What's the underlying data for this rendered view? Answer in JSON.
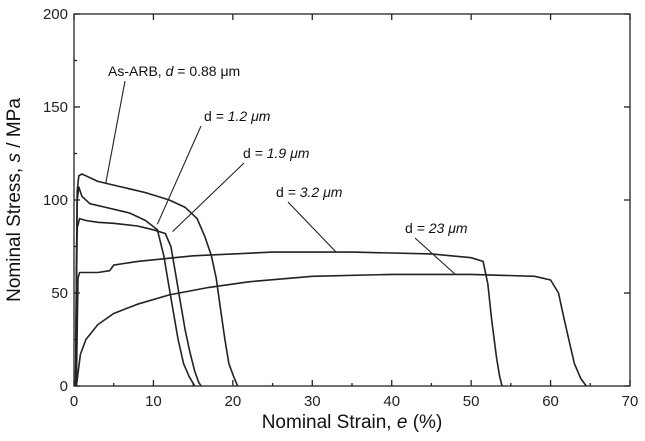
{
  "chart_data": {
    "type": "line",
    "title": "",
    "xlabel_parts": [
      "Nominal Strain, ",
      "e",
      " (%)"
    ],
    "ylabel_parts": [
      "Nominal Stress, ",
      "s",
      " / MPa"
    ],
    "xlim": [
      0,
      70
    ],
    "ylim": [
      0,
      200
    ],
    "xticks": [
      0,
      10,
      20,
      30,
      40,
      50,
      60,
      70
    ],
    "yticks": [
      0,
      50,
      100,
      150,
      200
    ],
    "grid": false,
    "legend": "none",
    "series": [
      {
        "label_parts": [
          "As-ARB, ",
          "d",
          " = 0.88 μm"
        ],
        "points": [
          [
            0.2,
            0
          ],
          [
            0.3,
            60
          ],
          [
            0.4,
            105
          ],
          [
            0.6,
            113
          ],
          [
            1.0,
            114
          ],
          [
            1.5,
            113
          ],
          [
            3,
            110
          ],
          [
            6,
            107
          ],
          [
            9,
            104
          ],
          [
            12,
            100
          ],
          [
            14,
            96
          ],
          [
            15.5,
            90
          ],
          [
            16.5,
            80
          ],
          [
            17.3,
            70
          ],
          [
            17.9,
            58
          ],
          [
            18.5,
            40
          ],
          [
            19,
            25
          ],
          [
            19.5,
            12
          ],
          [
            20.1,
            5
          ],
          [
            20.6,
            0
          ]
        ]
      },
      {
        "label_parts": [
          "d",
          " = 1.2 μm"
        ],
        "points": [
          [
            0.2,
            0
          ],
          [
            0.3,
            60
          ],
          [
            0.4,
            100
          ],
          [
            0.6,
            107
          ],
          [
            1.0,
            102
          ],
          [
            2,
            98
          ],
          [
            4,
            96
          ],
          [
            7,
            93
          ],
          [
            9,
            89
          ],
          [
            10.5,
            84
          ],
          [
            11.3,
            70
          ],
          [
            11.9,
            55
          ],
          [
            12.5,
            40
          ],
          [
            13.1,
            25
          ],
          [
            13.8,
            12
          ],
          [
            14.5,
            5
          ],
          [
            15.2,
            0
          ]
        ]
      },
      {
        "label_parts": [
          "d",
          " = 1.9 μm"
        ],
        "points": [
          [
            0.2,
            0
          ],
          [
            0.3,
            50
          ],
          [
            0.4,
            85
          ],
          [
            0.7,
            90
          ],
          [
            1.5,
            89
          ],
          [
            3,
            88
          ],
          [
            5,
            87.5
          ],
          [
            8,
            86
          ],
          [
            10,
            84
          ],
          [
            11.5,
            82
          ],
          [
            12.2,
            75
          ],
          [
            12.8,
            60
          ],
          [
            13.4,
            45
          ],
          [
            14,
            30
          ],
          [
            14.6,
            18
          ],
          [
            15.2,
            8
          ],
          [
            15.7,
            2
          ],
          [
            16,
            0
          ]
        ]
      },
      {
        "label_parts": [
          "d",
          " = 3.2 μm"
        ],
        "points": [
          [
            0.3,
            0
          ],
          [
            0.4,
            30
          ],
          [
            0.5,
            58
          ],
          [
            0.7,
            61
          ],
          [
            1.5,
            61
          ],
          [
            3,
            61
          ],
          [
            4.5,
            62
          ],
          [
            5,
            65
          ],
          [
            8,
            67
          ],
          [
            15,
            70
          ],
          [
            25,
            72
          ],
          [
            35,
            72
          ],
          [
            45,
            71
          ],
          [
            50,
            69
          ],
          [
            51.5,
            67
          ],
          [
            52.1,
            55
          ],
          [
            52.6,
            35
          ],
          [
            53.2,
            15
          ],
          [
            53.6,
            5
          ],
          [
            53.9,
            0
          ]
        ]
      },
      {
        "label_parts": [
          "d",
          " = 23 μm"
        ],
        "points": [
          [
            0.3,
            0
          ],
          [
            0.8,
            17
          ],
          [
            1.5,
            25
          ],
          [
            3,
            33
          ],
          [
            5,
            39
          ],
          [
            8,
            44
          ],
          [
            12,
            49
          ],
          [
            17,
            53
          ],
          [
            22,
            56
          ],
          [
            30,
            59
          ],
          [
            40,
            60
          ],
          [
            50,
            60
          ],
          [
            58,
            59
          ],
          [
            60,
            57
          ],
          [
            61,
            50
          ],
          [
            61.6,
            38
          ],
          [
            62.3,
            25
          ],
          [
            63,
            12
          ],
          [
            63.8,
            4
          ],
          [
            64.5,
            0
          ]
        ]
      }
    ],
    "annotations": [
      {
        "series": 0,
        "text_parts": [
          "As-ARB, ",
          "d",
          " = 0.88 μm"
        ],
        "at": [
          4,
          109
        ]
      },
      {
        "series": 1,
        "text_parts": [
          "d",
          " = 1.2 μm"
        ],
        "at": [
          10.5,
          87
        ]
      },
      {
        "series": 2,
        "text_parts": [
          "d",
          " = 1.9 μm"
        ],
        "at": [
          12.4,
          83
        ]
      },
      {
        "series": 3,
        "text_parts": [
          "d",
          " = 3.2 μm"
        ],
        "at": [
          33,
          72
        ]
      },
      {
        "series": 4,
        "text_parts": [
          "d",
          " = 23 μm"
        ],
        "at": [
          48,
          60
        ]
      }
    ]
  }
}
